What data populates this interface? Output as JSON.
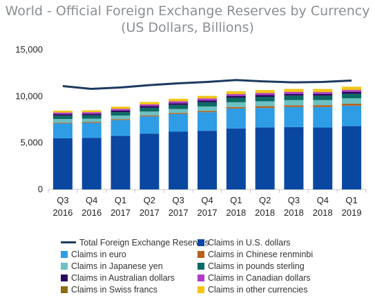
{
  "chart_data": {
    "type": "bar",
    "title_line1": "World - Official Foreign Exchange Reserves by Currency",
    "title_line2": "(US Dollars, Billions)",
    "categories": [
      [
        "Q3",
        "2016"
      ],
      [
        "Q4",
        "2016"
      ],
      [
        "Q1",
        "2017"
      ],
      [
        "Q2",
        "2017"
      ],
      [
        "Q3",
        "2017"
      ],
      [
        "Q4",
        "2017"
      ],
      [
        "Q1",
        "2018"
      ],
      [
        "Q2",
        "2018"
      ],
      [
        "Q3",
        "2018"
      ],
      [
        "Q4",
        "2018"
      ],
      [
        "Q1",
        "2019"
      ]
    ],
    "ylim": [
      0,
      15000
    ],
    "yticks": [
      "0",
      "5,000",
      "10,000",
      "15,000"
    ],
    "ytick_values": [
      0,
      5000,
      10000,
      15000
    ],
    "stacked": true,
    "series": [
      {
        "name": "Claims in U.S. dollars",
        "color": "#0a47a0",
        "values": [
          5500,
          5550,
          5750,
          6000,
          6200,
          6300,
          6550,
          6650,
          6700,
          6650,
          6800
        ]
      },
      {
        "name": "Claims in euro",
        "color": "#2e9de6",
        "values": [
          1600,
          1600,
          1700,
          1850,
          1900,
          2000,
          2150,
          2100,
          2150,
          2200,
          2200
        ]
      },
      {
        "name": "Claims in Chinese renminbi",
        "color": "#b8611a",
        "values": [
          85,
          90,
          100,
          110,
          115,
          125,
          145,
          190,
          185,
          200,
          210
        ]
      },
      {
        "name": "Claims in Japanese yen",
        "color": "#6bc1c4",
        "values": [
          380,
          370,
          390,
          410,
          430,
          490,
          520,
          530,
          560,
          550,
          580
        ]
      },
      {
        "name": "Claims in pounds sterling",
        "color": "#0b6a63",
        "values": [
          360,
          355,
          370,
          400,
          430,
          450,
          480,
          480,
          480,
          470,
          490
        ]
      },
      {
        "name": "Claims in Australian dollars",
        "color": "#2a0a5e",
        "values": [
          160,
          160,
          170,
          180,
          190,
          200,
          200,
          190,
          180,
          180,
          190
        ]
      },
      {
        "name": "Claims in Canadian dollars",
        "color": "#b13cc6",
        "values": [
          160,
          160,
          170,
          180,
          200,
          200,
          190,
          210,
          210,
          200,
          210
        ]
      },
      {
        "name": "Claims in Swiss francs",
        "color": "#8a6d14",
        "values": [
          15,
          15,
          15,
          15,
          15,
          15,
          15,
          15,
          15,
          15,
          15
        ]
      },
      {
        "name": "Claims in other currencies",
        "color": "#f2c515",
        "values": [
          200,
          200,
          230,
          250,
          260,
          270,
          290,
          310,
          320,
          330,
          340
        ]
      }
    ],
    "line_series": {
      "name": "Total Foreign Exchange Reserves",
      "color": "#1c3a5e",
      "values": [
        11100,
        10800,
        10950,
        11200,
        11400,
        11550,
        11750,
        11600,
        11500,
        11550,
        11700
      ]
    },
    "legend_order": [
      "Total Foreign Exchange Reserves",
      "Claims in U.S. dollars",
      "Claims in euro",
      "Claims in Chinese renminbi",
      "Claims in Japanese yen",
      "Claims in pounds sterling",
      "Claims in Australian dollars",
      "Claims in Canadian dollars",
      "Claims in Swiss francs",
      "Claims in other currencies"
    ],
    "legend_position": "bottom",
    "grid": false
  }
}
